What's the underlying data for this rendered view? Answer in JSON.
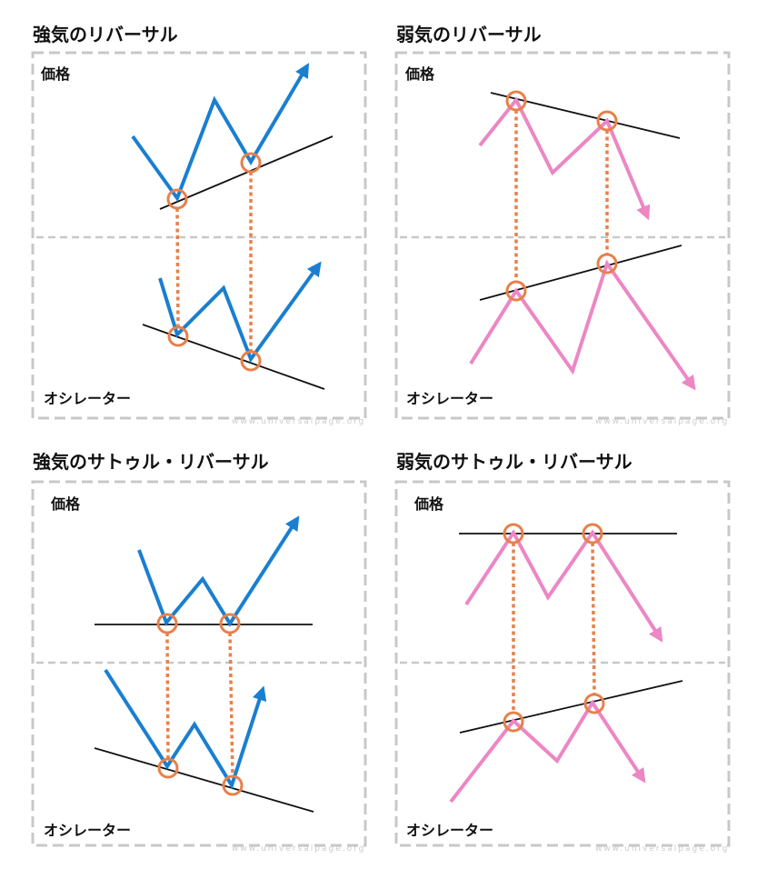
{
  "panels": [
    {
      "title": "強気のリバーサル",
      "price_label": "価格",
      "oscillator_label": "オシレーター",
      "watermark": "www.universalpage.org",
      "line_color": "#1a7fd0"
    },
    {
      "title": "弱気のリバーサル",
      "price_label": "価格",
      "oscillator_label": "オシレーター",
      "watermark": "www.universalpage.org",
      "line_color": "#ec87c4"
    },
    {
      "title": "強気のサトゥル・リバーサル",
      "price_label": "価格",
      "oscillator_label": "オシレーター",
      "watermark": "www.universalpage.org",
      "line_color": "#1a7fd0"
    },
    {
      "title": "弱気のサトゥル・リバーサル",
      "price_label": "価格",
      "oscillator_label": "オシレーター",
      "watermark": "www.universalpage.org",
      "line_color": "#ec87c4"
    }
  ],
  "colors": {
    "marker": "#e8804a",
    "trendline": "#111111",
    "frame": "#c8c8c8"
  }
}
